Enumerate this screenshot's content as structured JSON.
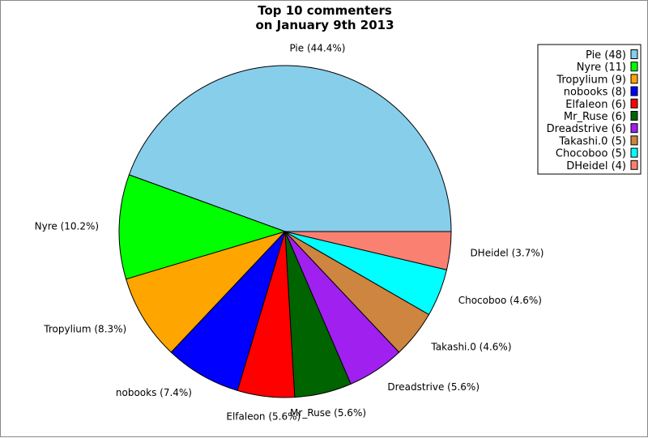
{
  "chart_data": {
    "type": "pie",
    "title": [
      "Top 10 commenters",
      "on January 9th 2013"
    ],
    "start": "3 o'clock, counterclockwise",
    "legend_placement": "top-right",
    "slices": [
      {
        "name": "Pie",
        "value": 48,
        "pct": "44.4%",
        "color": "#87CEEB"
      },
      {
        "name": "Nyre",
        "value": 11,
        "pct": "10.2%",
        "color": "#00FF00"
      },
      {
        "name": "Tropylium",
        "value": 9,
        "pct": "8.3%",
        "color": "#FFA500"
      },
      {
        "name": "nobooks",
        "value": 8,
        "pct": "7.4%",
        "color": "#0000FF"
      },
      {
        "name": "Elfaleon",
        "value": 6,
        "pct": "5.6%",
        "color": "#FF0000"
      },
      {
        "name": "Mr_Ruse",
        "value": 6,
        "pct": "5.6%",
        "color": "#006400"
      },
      {
        "name": "Dreadstrive",
        "value": 6,
        "pct": "5.6%",
        "color": "#A020F0"
      },
      {
        "name": "Takashi.0",
        "value": 5,
        "pct": "4.6%",
        "color": "#CD853F"
      },
      {
        "name": "Chocoboo",
        "value": 5,
        "pct": "4.6%",
        "color": "#00FFFF"
      },
      {
        "name": "DHeidel",
        "value": 4,
        "pct": "3.7%",
        "color": "#FA8072"
      }
    ]
  }
}
